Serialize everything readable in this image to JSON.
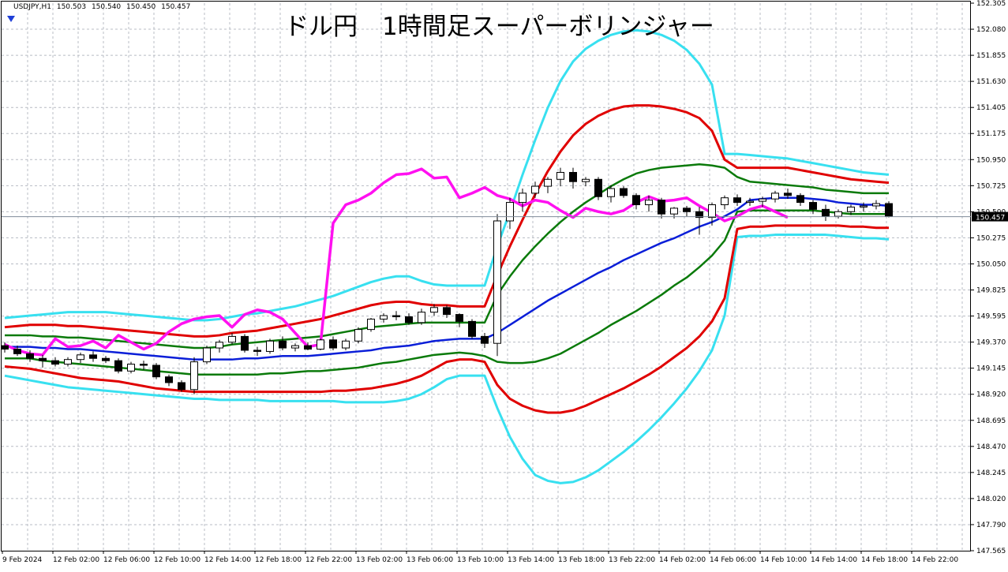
{
  "header": {
    "symbol": "USDJPY,H1",
    "ohlc": [
      "150.503",
      "150.540",
      "150.450",
      "150.457"
    ],
    "title": "ドル円　1時間足スーパーボリンジャー"
  },
  "colors": {
    "background": "#ffffff",
    "grid": "#b8bcc4",
    "candle_up_fill": "#ffffff",
    "candle_down_fill": "#000000",
    "middle_band": "#0a1ed8",
    "sigma1": "#0a7a0a",
    "sigma2": "#e00000",
    "sigma3": "#38e0f0",
    "chikou": "#ff10f0",
    "price_line": "#7f8c99",
    "menu_arrow": "#1f3fd8"
  },
  "chart_data": {
    "type": "candlestick",
    "title": "ドル円　1時間足スーパーボリンジャー",
    "symbol": "USDJPY",
    "timeframe": "H1",
    "current_price": "150.457",
    "ylim": [
      147.565,
      152.305
    ],
    "grid": true,
    "y_ticks": [
      "152.305",
      "152.080",
      "151.855",
      "151.630",
      "151.405",
      "151.175",
      "150.950",
      "150.725",
      "150.500",
      "150.275",
      "150.050",
      "149.825",
      "149.595",
      "149.370",
      "149.145",
      "148.920",
      "148.695",
      "148.470",
      "148.245",
      "148.020",
      "147.790",
      "147.565"
    ],
    "x_ticks": [
      "9 Feb 2024",
      "12 Feb 02:00",
      "12 Feb 06:00",
      "12 Feb 10:00",
      "12 Feb 14:00",
      "12 Feb 18:00",
      "12 Feb 22:00",
      "13 Feb 02:00",
      "13 Feb 06:00",
      "13 Feb 10:00",
      "13 Feb 14:00",
      "13 Feb 18:00",
      "13 Feb 22:00",
      "14 Feb 02:00",
      "14 Feb 06:00",
      "14 Feb 10:00",
      "14 Feb 14:00",
      "14 Feb 18:00",
      "14 Feb 22:00"
    ],
    "candles": [
      [
        149.34,
        149.37,
        149.28,
        149.31
      ],
      [
        149.31,
        149.34,
        149.25,
        149.27
      ],
      [
        149.27,
        149.3,
        149.2,
        149.23
      ],
      [
        149.23,
        149.26,
        149.15,
        149.21
      ],
      [
        149.21,
        149.24,
        149.16,
        149.18
      ],
      [
        149.18,
        149.24,
        149.16,
        149.22
      ],
      [
        149.22,
        149.28,
        149.19,
        149.26
      ],
      [
        149.26,
        149.29,
        149.2,
        149.23
      ],
      [
        149.23,
        149.25,
        149.19,
        149.21
      ],
      [
        149.21,
        149.23,
        149.1,
        149.12
      ],
      [
        149.12,
        149.2,
        149.1,
        149.18
      ],
      [
        149.18,
        149.21,
        149.13,
        149.17
      ],
      [
        149.17,
        149.19,
        149.05,
        149.07
      ],
      [
        149.07,
        149.09,
        148.99,
        149.02
      ],
      [
        149.02,
        149.04,
        148.94,
        148.96
      ],
      [
        148.96,
        149.24,
        148.92,
        149.2
      ],
      [
        149.2,
        149.34,
        149.18,
        149.32
      ],
      [
        149.32,
        149.39,
        149.28,
        149.37
      ],
      [
        149.37,
        149.45,
        149.35,
        149.42
      ],
      [
        149.42,
        149.44,
        149.28,
        149.3
      ],
      [
        149.3,
        149.33,
        149.25,
        149.29
      ],
      [
        149.29,
        149.4,
        149.27,
        149.38
      ],
      [
        149.38,
        149.42,
        149.3,
        149.32
      ],
      [
        149.32,
        149.36,
        149.29,
        149.34
      ],
      [
        149.34,
        149.37,
        149.3,
        149.31
      ],
      [
        149.31,
        149.4,
        149.3,
        149.39
      ],
      [
        149.39,
        149.42,
        149.3,
        149.32
      ],
      [
        149.32,
        149.4,
        149.3,
        149.38
      ],
      [
        149.38,
        149.5,
        149.36,
        149.48
      ],
      [
        149.48,
        149.58,
        149.46,
        149.57
      ],
      [
        149.57,
        149.62,
        149.54,
        149.6
      ],
      [
        149.6,
        149.64,
        149.56,
        149.59
      ],
      [
        149.59,
        149.62,
        149.52,
        149.54
      ],
      [
        149.54,
        149.66,
        149.52,
        149.63
      ],
      [
        149.63,
        149.7,
        149.6,
        149.67
      ],
      [
        149.67,
        149.69,
        149.58,
        149.61
      ],
      [
        149.61,
        149.62,
        149.5,
        149.55
      ],
      [
        149.55,
        149.57,
        149.4,
        149.42
      ],
      [
        149.42,
        149.45,
        149.32,
        149.36
      ],
      [
        149.36,
        150.48,
        149.25,
        150.42
      ],
      [
        150.42,
        150.62,
        150.35,
        150.58
      ],
      [
        150.58,
        150.7,
        150.5,
        150.66
      ],
      [
        150.66,
        150.76,
        150.62,
        150.72
      ],
      [
        150.72,
        150.8,
        150.66,
        150.78
      ],
      [
        150.78,
        150.88,
        150.72,
        150.84
      ],
      [
        150.84,
        150.88,
        150.7,
        150.76
      ],
      [
        150.76,
        150.8,
        150.72,
        150.78
      ],
      [
        150.78,
        150.8,
        150.6,
        150.63
      ],
      [
        150.63,
        150.73,
        150.58,
        150.7
      ],
      [
        150.7,
        150.72,
        150.62,
        150.64
      ],
      [
        150.64,
        150.66,
        150.52,
        150.56
      ],
      [
        150.56,
        150.64,
        150.5,
        150.6
      ],
      [
        150.6,
        150.62,
        150.44,
        150.48
      ],
      [
        150.48,
        150.54,
        150.44,
        150.53
      ],
      [
        150.53,
        150.55,
        150.46,
        150.5
      ],
      [
        150.5,
        150.54,
        150.3,
        150.45
      ],
      [
        150.45,
        150.58,
        150.38,
        150.56
      ],
      [
        150.56,
        150.64,
        150.52,
        150.62
      ],
      [
        150.62,
        150.65,
        150.55,
        150.58
      ],
      [
        150.58,
        150.62,
        150.55,
        150.59
      ],
      [
        150.59,
        150.63,
        150.54,
        150.61
      ],
      [
        150.61,
        150.68,
        150.58,
        150.66
      ],
      [
        150.66,
        150.7,
        150.61,
        150.64
      ],
      [
        150.64,
        150.66,
        150.55,
        150.58
      ],
      [
        150.58,
        150.6,
        150.48,
        150.52
      ],
      [
        150.52,
        150.56,
        150.42,
        150.46
      ],
      [
        150.46,
        150.52,
        150.44,
        150.5
      ],
      [
        150.5,
        150.56,
        150.47,
        150.54
      ],
      [
        150.54,
        150.58,
        150.5,
        150.55
      ],
      [
        150.55,
        150.6,
        150.52,
        150.57
      ],
      [
        150.57,
        150.59,
        150.45,
        150.46
      ]
    ],
    "bands": {
      "middle": [
        149.33,
        149.33,
        149.33,
        149.32,
        149.32,
        149.31,
        149.31,
        149.3,
        149.29,
        149.28,
        149.27,
        149.26,
        149.25,
        149.24,
        149.23,
        149.22,
        149.22,
        149.22,
        149.22,
        149.23,
        149.23,
        149.24,
        149.25,
        149.25,
        149.25,
        149.26,
        149.27,
        149.28,
        149.29,
        149.3,
        149.32,
        149.33,
        149.34,
        149.36,
        149.38,
        149.39,
        149.4,
        149.4,
        149.4,
        149.45,
        149.52,
        149.59,
        149.66,
        149.73,
        149.79,
        149.85,
        149.91,
        149.97,
        150.02,
        150.08,
        150.13,
        150.18,
        150.23,
        150.27,
        150.32,
        150.37,
        150.41,
        150.46,
        150.52,
        150.6,
        150.61,
        150.62,
        150.62,
        150.62,
        150.61,
        150.6,
        150.58,
        150.57,
        150.56,
        150.56,
        150.55
      ],
      "sigma1_upper": [
        149.43,
        149.43,
        149.43,
        149.42,
        149.42,
        149.41,
        149.41,
        149.4,
        149.39,
        149.38,
        149.37,
        149.36,
        149.35,
        149.34,
        149.33,
        149.32,
        149.32,
        149.33,
        149.35,
        149.36,
        149.37,
        149.38,
        149.39,
        149.4,
        149.41,
        149.42,
        149.44,
        149.46,
        149.48,
        149.5,
        149.51,
        149.52,
        149.53,
        149.54,
        149.54,
        149.54,
        149.54,
        149.54,
        149.54,
        149.78,
        149.94,
        150.08,
        150.2,
        150.31,
        150.41,
        150.5,
        150.58,
        150.65,
        150.72,
        150.78,
        150.83,
        150.86,
        150.88,
        150.89,
        150.9,
        150.91,
        150.9,
        150.88,
        150.8,
        150.76,
        150.75,
        150.74,
        150.73,
        150.72,
        150.71,
        150.69,
        150.68,
        150.67,
        150.66,
        150.66,
        150.66
      ],
      "sigma1_lower": [
        149.23,
        149.23,
        149.23,
        149.21,
        149.2,
        149.19,
        149.18,
        149.17,
        149.16,
        149.15,
        149.14,
        149.13,
        149.12,
        149.11,
        149.1,
        149.09,
        149.09,
        149.09,
        149.09,
        149.09,
        149.09,
        149.1,
        149.1,
        149.11,
        149.12,
        149.12,
        149.13,
        149.14,
        149.15,
        149.17,
        149.19,
        149.2,
        149.22,
        149.24,
        149.26,
        149.27,
        149.28,
        149.27,
        149.25,
        149.2,
        149.19,
        149.19,
        149.2,
        149.23,
        149.27,
        149.33,
        149.39,
        149.45,
        149.52,
        149.58,
        149.64,
        149.71,
        149.78,
        149.86,
        149.93,
        150.02,
        150.12,
        150.25,
        150.5,
        150.51,
        150.51,
        150.51,
        150.51,
        150.51,
        150.51,
        150.5,
        150.49,
        150.48,
        150.48,
        150.48,
        150.48
      ],
      "sigma2_upper": [
        149.5,
        149.51,
        149.52,
        149.52,
        149.52,
        149.51,
        149.51,
        149.5,
        149.49,
        149.48,
        149.47,
        149.46,
        149.45,
        149.44,
        149.43,
        149.42,
        149.42,
        149.43,
        149.45,
        149.46,
        149.47,
        149.49,
        149.51,
        149.53,
        149.55,
        149.57,
        149.6,
        149.63,
        149.66,
        149.69,
        149.71,
        149.72,
        149.72,
        149.7,
        149.69,
        149.69,
        149.68,
        149.68,
        149.68,
        149.95,
        150.2,
        150.43,
        150.65,
        150.85,
        151.02,
        151.16,
        151.26,
        151.33,
        151.38,
        151.41,
        151.42,
        151.42,
        151.41,
        151.39,
        151.36,
        151.31,
        151.2,
        150.95,
        150.88,
        150.88,
        150.88,
        150.88,
        150.88,
        150.86,
        150.84,
        150.82,
        150.8,
        150.78,
        150.77,
        150.76,
        150.75
      ],
      "sigma2_lower": [
        149.16,
        149.15,
        149.14,
        149.12,
        149.1,
        149.08,
        149.06,
        149.05,
        149.04,
        149.03,
        149.01,
        148.99,
        148.97,
        148.96,
        148.95,
        148.94,
        148.94,
        148.94,
        148.94,
        148.94,
        148.94,
        148.94,
        148.94,
        148.94,
        148.94,
        148.94,
        148.95,
        148.95,
        148.96,
        148.97,
        148.99,
        149.01,
        149.04,
        149.08,
        149.14,
        149.2,
        149.22,
        149.22,
        149.2,
        149.0,
        148.88,
        148.82,
        148.78,
        148.76,
        148.76,
        148.78,
        148.82,
        148.87,
        148.92,
        148.97,
        149.03,
        149.09,
        149.16,
        149.24,
        149.32,
        149.42,
        149.55,
        149.75,
        150.35,
        150.37,
        150.37,
        150.38,
        150.38,
        150.38,
        150.38,
        150.38,
        150.38,
        150.37,
        150.37,
        150.36,
        150.36
      ],
      "sigma3_upper": [
        149.58,
        149.59,
        149.6,
        149.61,
        149.62,
        149.63,
        149.63,
        149.63,
        149.63,
        149.62,
        149.61,
        149.6,
        149.59,
        149.58,
        149.57,
        149.56,
        149.56,
        149.57,
        149.59,
        149.61,
        149.62,
        149.64,
        149.66,
        149.68,
        149.71,
        149.74,
        149.77,
        149.81,
        149.85,
        149.89,
        149.92,
        149.94,
        149.94,
        149.9,
        149.87,
        149.86,
        149.86,
        149.86,
        149.86,
        150.2,
        150.5,
        150.82,
        151.12,
        151.4,
        151.63,
        151.8,
        151.91,
        151.98,
        152.03,
        152.06,
        152.07,
        152.06,
        152.03,
        151.98,
        151.9,
        151.78,
        151.6,
        151.0,
        151.0,
        150.99,
        150.98,
        150.97,
        150.96,
        150.94,
        150.92,
        150.9,
        150.88,
        150.86,
        150.84,
        150.83,
        150.82
      ],
      "sigma3_lower": [
        149.08,
        149.06,
        149.04,
        149.02,
        149.0,
        148.98,
        148.97,
        148.96,
        148.95,
        148.94,
        148.93,
        148.92,
        148.91,
        148.9,
        148.89,
        148.88,
        148.88,
        148.87,
        148.87,
        148.87,
        148.87,
        148.86,
        148.86,
        148.86,
        148.86,
        148.86,
        148.86,
        148.85,
        148.85,
        148.85,
        148.85,
        148.86,
        148.88,
        148.92,
        148.98,
        149.05,
        149.08,
        149.08,
        149.08,
        148.8,
        148.55,
        148.36,
        148.22,
        148.17,
        148.15,
        148.16,
        148.2,
        148.26,
        148.34,
        148.42,
        148.51,
        148.61,
        148.72,
        148.84,
        148.97,
        149.12,
        149.3,
        149.6,
        150.28,
        150.29,
        150.29,
        150.3,
        150.3,
        150.3,
        150.3,
        150.3,
        150.29,
        150.28,
        150.27,
        150.27,
        150.26
      ],
      "chikou_span": [
        149.35,
        149.3,
        149.27,
        149.26,
        149.4,
        149.33,
        149.34,
        149.38,
        149.32,
        149.43,
        149.37,
        149.31,
        149.36,
        149.46,
        149.53,
        149.57,
        149.59,
        149.6,
        149.5,
        149.61,
        149.65,
        149.63,
        149.57,
        149.45,
        149.33,
        149.35,
        150.4,
        150.56,
        150.6,
        150.66,
        150.75,
        150.82,
        150.83,
        150.87,
        150.79,
        150.8,
        150.62,
        150.66,
        150.71,
        150.64,
        150.61,
        150.55,
        150.6,
        150.58,
        150.51,
        150.45,
        150.53,
        150.5,
        150.48,
        150.51,
        150.58,
        150.63,
        150.59,
        150.6,
        150.62,
        150.55,
        150.49,
        150.42,
        150.46,
        150.52,
        150.55,
        150.5,
        150.45
      ]
    }
  }
}
